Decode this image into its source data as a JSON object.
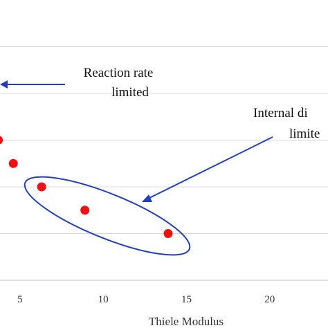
{
  "chart_data": {
    "type": "scatter",
    "title": "",
    "xlabel": "Thiele Modulus",
    "ylabel": "",
    "xlim": [
      3.8,
      23.5
    ],
    "ylim": [
      0,
      1.2
    ],
    "x_ticks": [
      {
        "value": 5,
        "label": "5"
      },
      {
        "value": 10,
        "label": "10"
      },
      {
        "value": 15,
        "label": "15"
      },
      {
        "value": 20,
        "label": "20"
      }
    ],
    "y_gridlines": [
      0.2,
      0.4,
      0.6,
      0.8,
      1.0
    ],
    "grid": "horizontal",
    "marker_color": "#ee1111",
    "series": [
      {
        "points": [
          {
            "x": 3.7,
            "y": 0.6
          },
          {
            "x": 4.6,
            "y": 0.5
          },
          {
            "x": 6.3,
            "y": 0.4
          },
          {
            "x": 8.9,
            "y": 0.3
          },
          {
            "x": 13.9,
            "y": 0.2
          }
        ]
      }
    ],
    "annotations": [
      {
        "name": "reaction-rate",
        "lines": [
          "Reaction rate",
          "limited"
        ]
      },
      {
        "name": "internal-diffusion",
        "lines": [
          "Internal di",
          "limite"
        ]
      }
    ],
    "annotation_color": "#1f3fbf"
  }
}
